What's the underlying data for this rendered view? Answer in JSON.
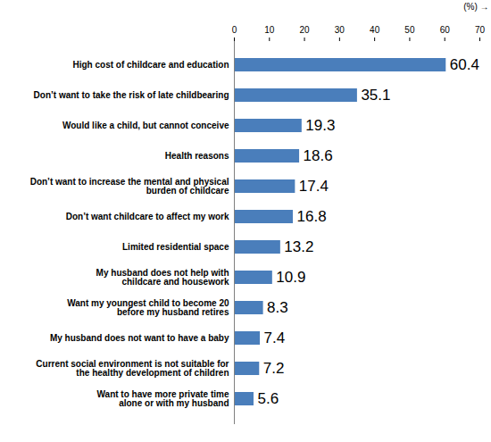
{
  "chart_data": {
    "type": "bar",
    "orientation": "horizontal",
    "x_label": "(%)",
    "categories": [
      "High cost of childcare and education",
      "Don’t want to take the risk of late childbearing",
      "Would like a child, but cannot conceive",
      "Health reasons",
      "Don’t want to increase the mental and physical\nburden of childcare",
      "Don’t want childcare to affect my work",
      "Limited residential space",
      "My husband does not help with\nchildcare and housework",
      "Want my youngest child to become 20\nbefore my husband retires",
      "My husband does not want to have a baby",
      "Current social environment is not suitable for\nthe healthy development of children",
      "Want to have more private time\nalone or with my husband"
    ],
    "values": [
      60.4,
      35.1,
      19.3,
      18.6,
      17.4,
      16.8,
      13.2,
      10.9,
      8.3,
      7.4,
      7.2,
      5.6
    ],
    "color": "#4a7ebb",
    "xlim": [
      0,
      70
    ],
    "xticks": [
      0,
      10,
      20,
      30,
      40,
      50,
      60,
      70
    ],
    "grid": false,
    "data_labels": true
  }
}
